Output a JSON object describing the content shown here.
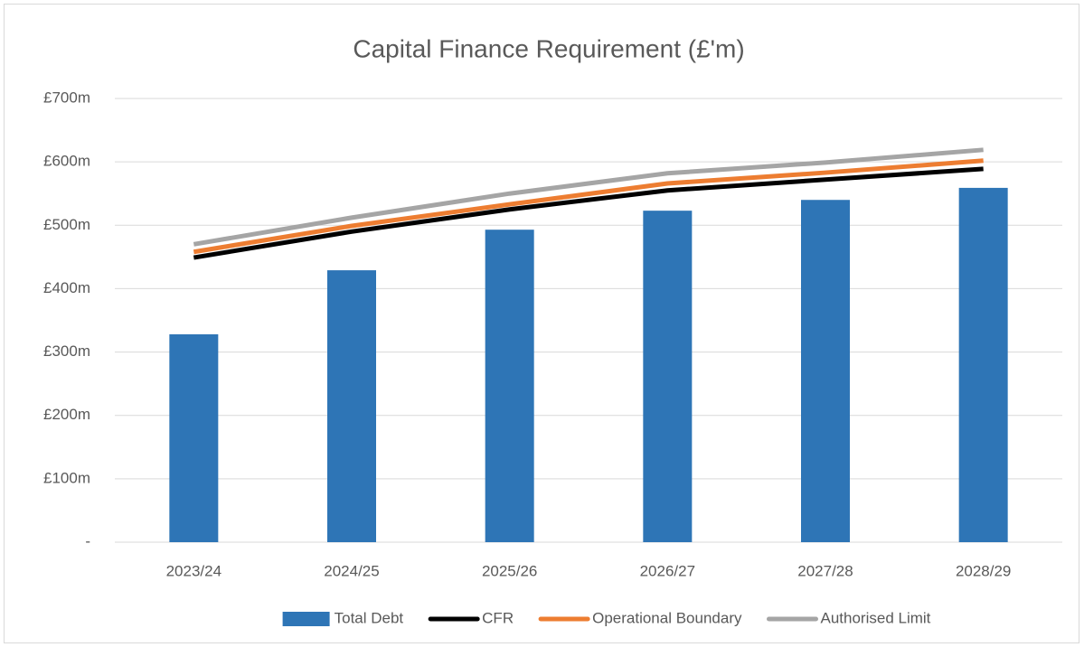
{
  "chart_data": {
    "type": "combo",
    "title": "Capital Finance Requirement (£'m)",
    "categories": [
      "2023/24",
      "2024/25",
      "2025/26",
      "2026/27",
      "2027/28",
      "2028/29"
    ],
    "series": [
      {
        "name": "Total Debt",
        "type": "bar",
        "color": "#2e75b6",
        "values": [
          328,
          429,
          493,
          523,
          540,
          559
        ]
      },
      {
        "name": "CFR",
        "type": "line",
        "color": "#000000",
        "values": [
          449,
          490,
          525,
          555,
          572,
          589
        ]
      },
      {
        "name": "Operational Boundary",
        "type": "line",
        "color": "#ed7d31",
        "values": [
          458,
          499,
          533,
          566,
          583,
          602
        ]
      },
      {
        "name": "Authorised Limit",
        "type": "line",
        "color": "#a5a5a5",
        "values": [
          470,
          512,
          550,
          582,
          599,
          619
        ]
      }
    ],
    "ylim": [
      0,
      700
    ],
    "yticks": [
      {
        "value": 0,
        "label": "-"
      },
      {
        "value": 100,
        "label": "£100m"
      },
      {
        "value": 200,
        "label": "£200m"
      },
      {
        "value": 300,
        "label": "£300m"
      },
      {
        "value": 400,
        "label": "£400m"
      },
      {
        "value": 500,
        "label": "£500m"
      },
      {
        "value": 600,
        "label": "£600m"
      },
      {
        "value": 700,
        "label": "£700m"
      }
    ],
    "grid": true,
    "legend": "bottom"
  }
}
